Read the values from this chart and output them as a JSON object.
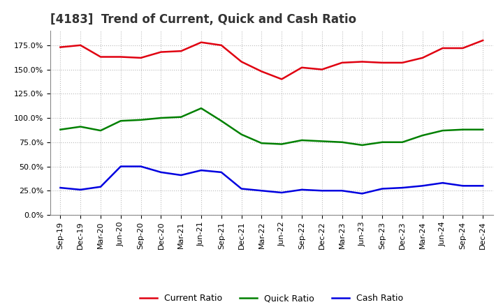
{
  "title": "[4183]  Trend of Current, Quick and Cash Ratio",
  "x_labels": [
    "Sep-19",
    "Dec-19",
    "Mar-20",
    "Jun-20",
    "Sep-20",
    "Dec-20",
    "Mar-21",
    "Jun-21",
    "Sep-21",
    "Dec-21",
    "Mar-22",
    "Jun-22",
    "Sep-22",
    "Dec-22",
    "Mar-23",
    "Jun-23",
    "Sep-23",
    "Dec-23",
    "Mar-24",
    "Jun-24",
    "Sep-24",
    "Dec-24"
  ],
  "current_ratio": [
    173,
    175,
    163,
    163,
    162,
    168,
    169,
    178,
    175,
    158,
    148,
    140,
    152,
    150,
    157,
    158,
    157,
    157,
    162,
    172,
    172,
    180
  ],
  "quick_ratio": [
    88,
    91,
    87,
    97,
    98,
    100,
    101,
    110,
    97,
    83,
    74,
    73,
    77,
    76,
    75,
    72,
    75,
    75,
    82,
    87,
    88,
    88
  ],
  "cash_ratio": [
    28,
    26,
    29,
    50,
    50,
    44,
    41,
    46,
    44,
    27,
    25,
    23,
    26,
    25,
    25,
    22,
    27,
    28,
    30,
    33,
    30,
    30
  ],
  "ylim": [
    0,
    190
  ],
  "yticks": [
    0,
    25,
    50,
    75,
    100,
    125,
    150,
    175
  ],
  "current_color": "#e00010",
  "quick_color": "#008000",
  "cash_color": "#0000e0",
  "bg_color": "#ffffff",
  "plot_bg_color": "#ffffff",
  "grid_color": "#bbbbbb",
  "title_fontsize": 12,
  "tick_fontsize": 8,
  "legend_fontsize": 9,
  "line_width": 1.8
}
